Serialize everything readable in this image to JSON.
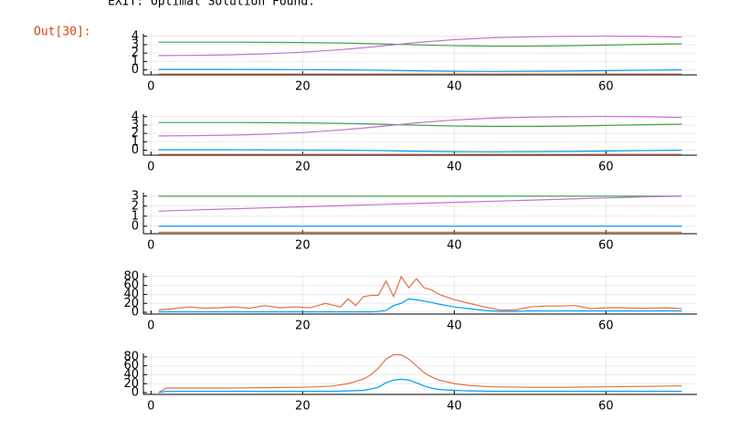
{
  "output_text": "EXIT: Optimal Solution Found.",
  "prompt": "Out[30]:",
  "chart_data": [
    {
      "type": "line",
      "x": [
        1,
        5,
        10,
        15,
        20,
        25,
        30,
        35,
        40,
        45,
        50,
        55,
        60,
        65,
        70
      ],
      "xlim": [
        -1,
        72
      ],
      "xticks": [
        0,
        20,
        40,
        60
      ],
      "ylim": [
        -0.6,
        4.3
      ],
      "yticks": [
        0,
        1,
        2,
        3,
        4
      ],
      "grid": true,
      "series": [
        {
          "color": "#009AFA",
          "values": [
            0.05,
            0.05,
            0.05,
            0.04,
            0.02,
            0,
            -0.05,
            -0.12,
            -0.18,
            -0.2,
            -0.18,
            -0.15,
            -0.1,
            -0.05,
            0.0
          ]
        },
        {
          "color": "#E26F46",
          "values": [
            -0.5,
            -0.5,
            -0.5,
            -0.5,
            -0.5,
            -0.5,
            -0.5,
            -0.5,
            -0.5,
            -0.5,
            -0.5,
            -0.5,
            -0.5,
            -0.5,
            -0.5
          ]
        },
        {
          "color": "#3DA44D",
          "values": [
            3.3,
            3.3,
            3.3,
            3.28,
            3.25,
            3.2,
            3.1,
            2.98,
            2.88,
            2.83,
            2.83,
            2.87,
            2.95,
            3.03,
            3.1
          ]
        },
        {
          "color": "#C271D2",
          "values": [
            1.7,
            1.72,
            1.78,
            1.9,
            2.1,
            2.4,
            2.8,
            3.25,
            3.6,
            3.82,
            3.94,
            4.0,
            4.02,
            4.0,
            3.9
          ]
        }
      ]
    },
    {
      "type": "line",
      "x": [
        1,
        5,
        10,
        15,
        20,
        25,
        30,
        35,
        40,
        45,
        50,
        55,
        60,
        65,
        70
      ],
      "xlim": [
        -1,
        72
      ],
      "xticks": [
        0,
        20,
        40,
        60
      ],
      "ylim": [
        -0.6,
        4.3
      ],
      "yticks": [
        0,
        1,
        2,
        3,
        4
      ],
      "grid": true,
      "series": [
        {
          "color": "#009AFA",
          "values": [
            0.05,
            0.05,
            0.05,
            0.04,
            0.02,
            0,
            -0.05,
            -0.12,
            -0.18,
            -0.2,
            -0.18,
            -0.15,
            -0.1,
            -0.05,
            0.0
          ]
        },
        {
          "color": "#E26F46",
          "values": [
            -0.5,
            -0.5,
            -0.5,
            -0.5,
            -0.5,
            -0.5,
            -0.5,
            -0.5,
            -0.5,
            -0.5,
            -0.5,
            -0.5,
            -0.5,
            -0.5,
            -0.5
          ]
        },
        {
          "color": "#3DA44D",
          "values": [
            3.3,
            3.3,
            3.3,
            3.28,
            3.25,
            3.2,
            3.1,
            2.98,
            2.88,
            2.83,
            2.83,
            2.87,
            2.95,
            3.03,
            3.1
          ]
        },
        {
          "color": "#C271D2",
          "values": [
            1.7,
            1.72,
            1.78,
            1.9,
            2.1,
            2.4,
            2.8,
            3.25,
            3.6,
            3.82,
            3.94,
            4.0,
            4.02,
            4.0,
            3.9
          ]
        }
      ]
    },
    {
      "type": "line",
      "x": [
        1,
        5,
        10,
        15,
        20,
        25,
        30,
        35,
        40,
        45,
        50,
        55,
        60,
        65,
        70
      ],
      "xlim": [
        -1,
        72
      ],
      "xticks": [
        0,
        20,
        40,
        60
      ],
      "ylim": [
        -0.75,
        3.35
      ],
      "yticks": [
        0,
        1,
        2,
        3
      ],
      "grid": true,
      "series": [
        {
          "color": "#009AFA",
          "values": [
            0,
            0,
            0,
            0,
            0,
            0,
            0,
            0,
            0,
            0,
            0,
            0,
            0,
            0,
            0
          ]
        },
        {
          "color": "#E26F46",
          "values": [
            -0.6,
            -0.6,
            -0.6,
            -0.6,
            -0.6,
            -0.6,
            -0.6,
            -0.6,
            -0.6,
            -0.6,
            -0.6,
            -0.6,
            -0.6,
            -0.6,
            -0.6
          ]
        },
        {
          "color": "#3DA44D",
          "values": [
            3.0,
            3.0,
            3.0,
            3.0,
            3.0,
            3.0,
            3.0,
            3.0,
            3.0,
            3.0,
            3.0,
            3.0,
            3.0,
            3.0,
            3.0
          ]
        },
        {
          "color": "#C271D2",
          "values": [
            1.5,
            1.6,
            1.72,
            1.83,
            1.94,
            2.05,
            2.16,
            2.27,
            2.38,
            2.49,
            2.6,
            2.71,
            2.82,
            2.93,
            3.0
          ]
        }
      ]
    },
    {
      "type": "line",
      "x": [
        1,
        3,
        5,
        7,
        9,
        11,
        13,
        15,
        17,
        19,
        21,
        23,
        25,
        26,
        27,
        28,
        29,
        30,
        31,
        32,
        33,
        34,
        35,
        36,
        37,
        38,
        40,
        42,
        44,
        46,
        48,
        50,
        52,
        54,
        56,
        58,
        60,
        62,
        64,
        66,
        68,
        70
      ],
      "xlim": [
        -1,
        72
      ],
      "xticks": [
        0,
        20,
        40,
        60
      ],
      "ylim": [
        -4,
        88
      ],
      "yticks": [
        0,
        20,
        40,
        60,
        80
      ],
      "grid": true,
      "series": [
        {
          "color": "#009AFA",
          "values": [
            1,
            1,
            1,
            1,
            1,
            1,
            1,
            1,
            1,
            1,
            1,
            1,
            1,
            1,
            1,
            1,
            1,
            2,
            4,
            15,
            20,
            30,
            28,
            25,
            22,
            18,
            12,
            8,
            4,
            2,
            2,
            3,
            3,
            3,
            3,
            3,
            3,
            3,
            3,
            3,
            3,
            3
          ]
        },
        {
          "color": "#E26F46",
          "values": [
            5,
            8,
            12,
            9,
            10,
            12,
            9,
            15,
            10,
            12,
            10,
            20,
            12,
            30,
            15,
            35,
            38,
            38,
            70,
            35,
            80,
            55,
            75,
            55,
            50,
            40,
            28,
            20,
            12,
            5,
            5,
            12,
            14,
            14,
            15,
            8,
            10,
            10,
            9,
            9,
            10,
            8
          ]
        }
      ]
    },
    {
      "type": "line",
      "x": [
        1,
        2,
        5,
        10,
        15,
        20,
        22,
        24,
        26,
        28,
        29,
        30,
        31,
        32,
        33,
        34,
        35,
        36,
        37,
        38,
        40,
        42,
        45,
        50,
        55,
        60,
        65,
        70
      ],
      "xlim": [
        -1,
        72
      ],
      "xticks": [
        0,
        20,
        40,
        60
      ],
      "ylim": [
        -4,
        88
      ],
      "yticks": [
        0,
        20,
        40,
        60,
        80
      ],
      "grid": true,
      "series": [
        {
          "color": "#009AFA",
          "values": [
            0,
            3,
            3,
            3,
            3,
            3,
            3,
            3,
            4,
            5,
            8,
            12,
            22,
            28,
            30,
            28,
            22,
            15,
            10,
            7,
            5,
            4,
            3,
            3,
            3,
            3,
            3,
            3
          ]
        },
        {
          "color": "#E26F46",
          "values": [
            0,
            10,
            10,
            10,
            11,
            12,
            13,
            15,
            20,
            30,
            40,
            55,
            75,
            85,
            85,
            75,
            60,
            45,
            35,
            28,
            20,
            16,
            13,
            12,
            12,
            13,
            14,
            15
          ]
        }
      ]
    }
  ]
}
